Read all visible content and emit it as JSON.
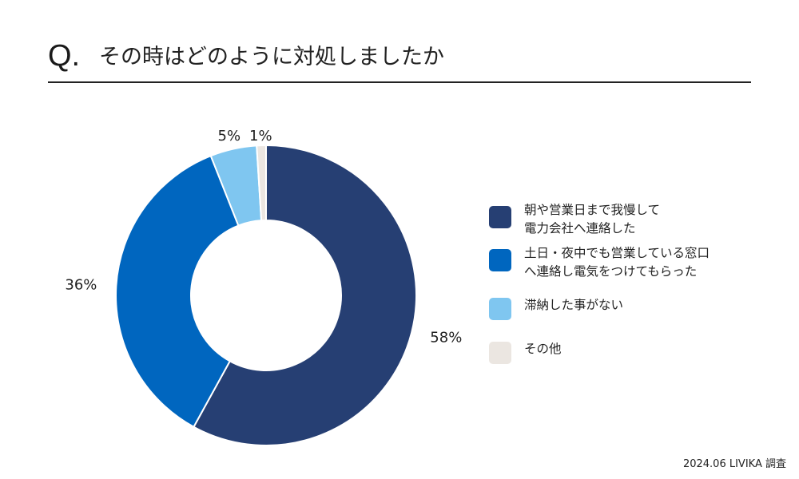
{
  "header": {
    "q_mark": "Q.",
    "title": "その時はどのように対処しましたか"
  },
  "chart_data": {
    "type": "pie",
    "style": "donut",
    "title": "その時はどのように対処しましたか",
    "categories": [
      "朝や営業日まで我慢して電力会社へ連絡した",
      "土日・夜中でも営業している窓口へ連絡し電気をつけてもらった",
      "滞納した事がない",
      "その他"
    ],
    "values": [
      58,
      36,
      5,
      1
    ],
    "labels": [
      "58%",
      "36%",
      "5%",
      "1%"
    ],
    "colors": [
      "#263f73",
      "#0066bf",
      "#7fc6f0",
      "#ebe6e1"
    ],
    "legend_placement": "right"
  },
  "legend": {
    "items": [
      {
        "lines": [
          "朝や営業日まで我慢して",
          "電力会社へ連絡した"
        ],
        "color": "#263f73"
      },
      {
        "lines": [
          "土日・夜中でも営業している窓口",
          "へ連絡し電気をつけてもらった"
        ],
        "color": "#0066bf"
      },
      {
        "lines": [
          "滞納した事がない"
        ],
        "color": "#7fc6f0"
      },
      {
        "lines": [
          "その他"
        ],
        "color": "#ebe6e1"
      }
    ]
  },
  "footer": {
    "source": "2024.06 LIVIKA 調査"
  }
}
